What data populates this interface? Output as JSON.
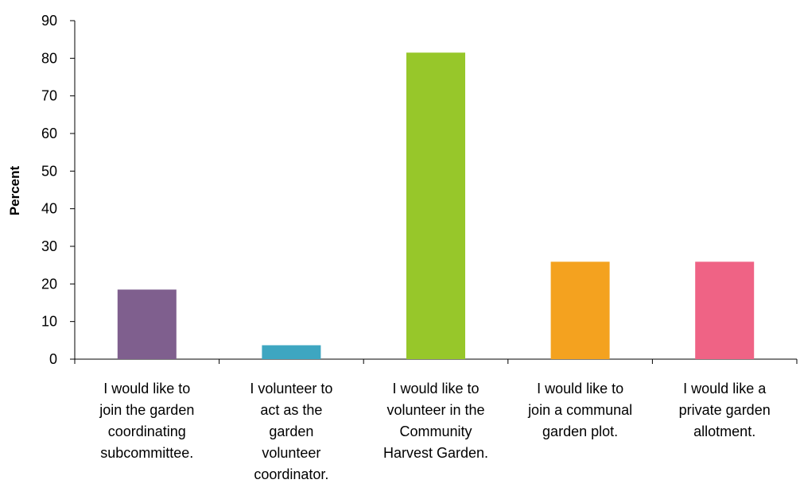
{
  "chart_data": {
    "type": "bar",
    "categories": [
      "I would like to join the garden coordinating subcommittee.",
      "I volunteer to act as the garden volunteer coordinator.",
      "I would like to volunteer in the Community Harvest Garden.",
      "I would like to join a communal garden plot.",
      "I would like a private garden allotment."
    ],
    "category_lines": [
      [
        "I would like to",
        "join the garden",
        "coordinating",
        "subcommittee."
      ],
      [
        "I volunteer to",
        "act as the",
        "garden",
        "volunteer",
        "coordinator."
      ],
      [
        "I would like to",
        "volunteer in the",
        "Community",
        "Harvest Garden."
      ],
      [
        "I would like to",
        "join a communal",
        "garden plot."
      ],
      [
        "I would like a",
        "private garden",
        "allotment."
      ]
    ],
    "values": [
      18.5,
      3.7,
      81.5,
      25.9,
      25.9
    ],
    "colors": [
      "#7f5f8e",
      "#3ea6c1",
      "#97c72a",
      "#f4a21f",
      "#ef6385"
    ],
    "ylabel": "Percent",
    "xlabel": "",
    "ylim": [
      0,
      90
    ],
    "yticks": [
      "0",
      "10",
      "20",
      "30",
      "40",
      "50",
      "60",
      "70",
      "80",
      "90"
    ],
    "grid": false
  }
}
